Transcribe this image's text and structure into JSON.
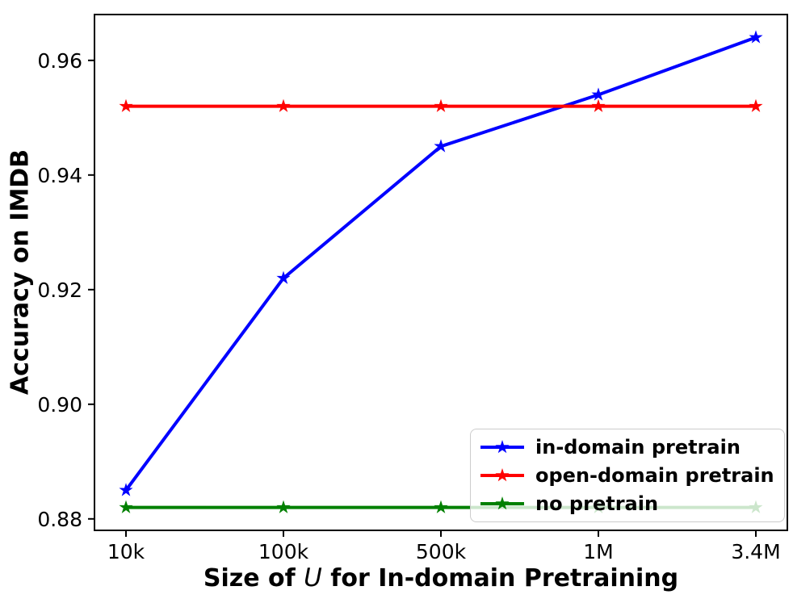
{
  "figure": {
    "background": "#ffffff",
    "text_color": "#000000"
  },
  "chart_data": {
    "type": "line",
    "title": "",
    "xlabel": {
      "prefix": "Size of ",
      "var": "U",
      "suffix": " for In-domain Pretraining",
      "full": "Size of U for In-domain Pretraining"
    },
    "ylabel": "Accuracy on IMDB",
    "categories": [
      "10k",
      "100k",
      "500k",
      "1M",
      "3.4M"
    ],
    "series": [
      {
        "name": "in-domain pretrain",
        "color": "#0000ff",
        "marker": "star",
        "values": [
          0.885,
          0.922,
          0.945,
          0.954,
          0.964
        ]
      },
      {
        "name": "open-domain pretrain",
        "color": "#ff0000",
        "marker": "star",
        "values": [
          0.952,
          0.952,
          0.952,
          0.952,
          0.952
        ]
      },
      {
        "name": "no pretrain",
        "color": "#008000",
        "marker": "star",
        "values": [
          0.882,
          0.882,
          0.882,
          0.882,
          0.882
        ]
      }
    ],
    "yticks": {
      "values": [
        0.88,
        0.9,
        0.92,
        0.94,
        0.96
      ],
      "labels": [
        "0.88",
        "0.90",
        "0.92",
        "0.94",
        "0.96"
      ]
    },
    "ylim": [
      0.878,
      0.968
    ],
    "grid": false,
    "legend": {
      "position": "lower right",
      "border_color": "#cccccc",
      "background": "rgba(255,255,255,0.8)"
    }
  }
}
